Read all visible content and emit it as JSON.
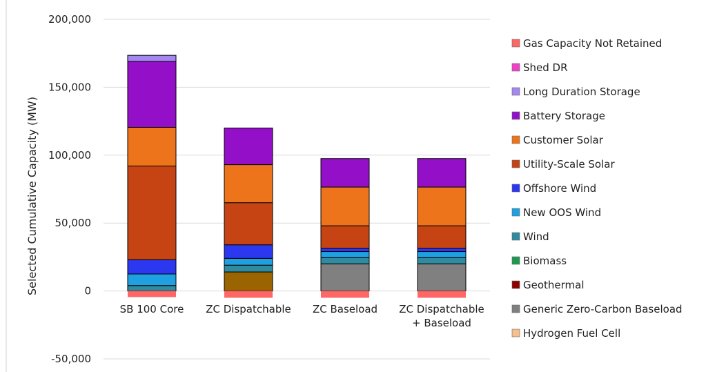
{
  "chart_data": {
    "type": "bar",
    "stacked": true,
    "title": "",
    "xlabel": "",
    "ylabel": "Selected Cumulative Capacity (MW)",
    "ylim": [
      -50000,
      200000
    ],
    "yticks": [
      -50000,
      0,
      50000,
      100000,
      150000,
      200000
    ],
    "ytick_labels": [
      "-50,000",
      "0",
      "50,000",
      "100,000",
      "150,000",
      "200,000"
    ],
    "grid": true,
    "legend_position": "right",
    "categories": [
      [
        "SB 100 Core"
      ],
      [
        "ZC Dispatchable"
      ],
      [
        "ZC Baseload"
      ],
      [
        "ZC Dispatchable",
        "+ Baseload"
      ]
    ],
    "series": [
      {
        "name": "Hydrogen Fuel Cell",
        "color": "#F5C08E",
        "values": [
          0,
          0,
          0,
          0
        ]
      },
      {
        "name": "Generic Zero-Carbon Baseload",
        "color": "#808080",
        "values": [
          0,
          0,
          20000,
          20000
        ]
      },
      {
        "name": "Geothermal",
        "color": "#8B0000",
        "values": [
          0,
          0,
          0,
          0
        ]
      },
      {
        "name": "Biomass",
        "color": "#1E9A4F",
        "values": [
          0,
          0,
          0,
          0
        ]
      },
      {
        "name": "Wind",
        "color": "#2E8BA0",
        "values": [
          4000,
          5000,
          4500,
          4500
        ]
      },
      {
        "name": "New OOS Wind",
        "color": "#1FA0E0",
        "values": [
          8500,
          5000,
          4500,
          4500
        ]
      },
      {
        "name": "Offshore Wind",
        "color": "#2C37F0",
        "values": [
          10500,
          10000,
          2500,
          2500
        ]
      },
      {
        "name": "Utility-Scale Solar",
        "color": "#C64414",
        "values": [
          69000,
          31000,
          16500,
          16500
        ]
      },
      {
        "name": "Customer Solar",
        "color": "#EE741C",
        "values": [
          28500,
          28000,
          28500,
          28500
        ]
      },
      {
        "name": "Battery Storage",
        "color": "#9410C8",
        "values": [
          48500,
          27000,
          21000,
          21000
        ]
      },
      {
        "name": "Long Duration Storage",
        "color": "#A487F0",
        "values": [
          4500,
          0,
          0,
          0
        ]
      },
      {
        "name": "Shed DR",
        "color": "#F040C8",
        "values": [
          0,
          0,
          0,
          0
        ]
      },
      {
        "name": "Gas Capacity Not Retained",
        "color": "#FF6666",
        "values": [
          -4500,
          -5000,
          -5000,
          -5000
        ]
      }
    ],
    "hidden_series": [
      {
        "color": "#9A6400",
        "values": [
          0,
          14000,
          0,
          0
        ]
      }
    ],
    "legend_order": [
      "Gas Capacity Not Retained",
      "Shed DR",
      "Long Duration Storage",
      "Battery Storage",
      "Customer Solar",
      "Utility-Scale Solar",
      "Offshore Wind",
      "New OOS Wind",
      "Wind",
      "Biomass",
      "Geothermal",
      "Generic Zero-Carbon Baseload",
      "Hydrogen Fuel Cell"
    ]
  }
}
